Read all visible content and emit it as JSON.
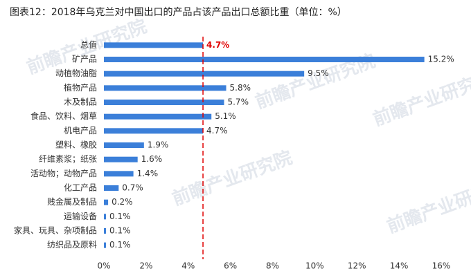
{
  "chart_data": {
    "type": "bar",
    "orientation": "horizontal",
    "title": "图表12：2018年乌克兰对中国出口的产品占该产品出口总额比重（单位：%）",
    "watermark": "前瞻产业研究院",
    "categories": [
      "总值",
      "矿产品",
      "动植物油脂",
      "植物产品",
      "木及制品",
      "食品、饮料、烟草",
      "机电产品",
      "塑料、橡胶",
      "纤维素浆；纸张",
      "活动物；动物产品",
      "化工产品",
      "贱金属及制品",
      "运输设备",
      "家具、玩具、杂项制品",
      "纺织品及原料"
    ],
    "values": [
      4.7,
      15.2,
      9.5,
      5.8,
      5.7,
      5.1,
      4.7,
      1.9,
      1.6,
      1.4,
      0.7,
      0.2,
      0.1,
      0.1,
      0.1
    ],
    "value_labels": [
      "4.7%",
      "15.2%",
      "9.5%",
      "5.8%",
      "5.7%",
      "5.1%",
      "4.7%",
      "1.9%",
      "1.6%",
      "1.4%",
      "0.7%",
      "0.2%",
      "0.1%",
      "0.1%",
      "0.1%"
    ],
    "value_label_colors": [
      "#e00000",
      "#333333",
      "#333333",
      "#333333",
      "#333333",
      "#333333",
      "#333333",
      "#333333",
      "#333333",
      "#333333",
      "#333333",
      "#333333",
      "#333333",
      "#333333",
      "#333333"
    ],
    "color": "#3b7fd9",
    "xlim": [
      0,
      16
    ],
    "xticks": [
      {
        "value": 0,
        "label": "0%"
      },
      {
        "value": 2,
        "label": "2%"
      },
      {
        "value": 4,
        "label": "4%"
      },
      {
        "value": 6,
        "label": "6%"
      },
      {
        "value": 8,
        "label": "8%"
      },
      {
        "value": 10,
        "label": "10%"
      },
      {
        "value": 12,
        "label": "12%"
      },
      {
        "value": 14,
        "label": "14%"
      },
      {
        "value": 16,
        "label": "16%"
      }
    ],
    "reference_line": {
      "value": 4.7,
      "color": "#e00000"
    }
  }
}
